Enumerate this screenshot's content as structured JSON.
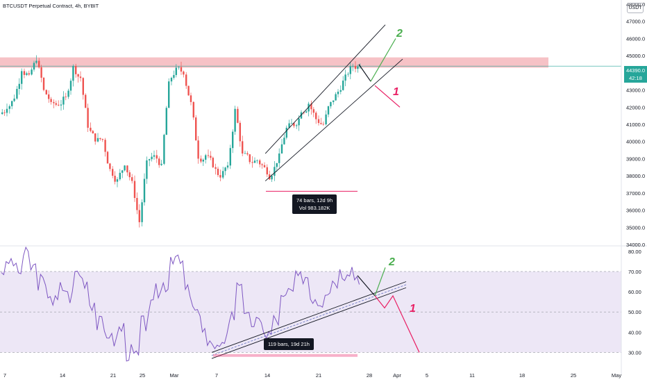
{
  "header": {
    "title": "BTCUSDT Perpetual Contract, 4h, BYBIT",
    "currency": "USDT"
  },
  "price_tag": {
    "price": "44390.0",
    "countdown": "42:18"
  },
  "measure_price": {
    "line1": "74 bars, 12d 9h",
    "line2": "Vol 983.182K"
  },
  "measure_rsi": {
    "line1": "119 bars, 19d 21h"
  },
  "annotations": {
    "up_label": "2",
    "down_label": "1"
  },
  "colors": {
    "up": "#26a69a",
    "down": "#ef5350",
    "rsi": "#7e57c2",
    "resistance": "#f5b7bc",
    "rsi_band": "#ede7f6",
    "green_arrow": "#4caf50",
    "red_arrow": "#e91e63"
  },
  "chart_data": [
    {
      "type": "candlestick",
      "title": "BTCUSDT Perpetual Contract, 4h, BYBIT",
      "y_ticks": [
        "34000.0",
        "35000.0",
        "36000.0",
        "37000.0",
        "38000.0",
        "39000.0",
        "40000.0",
        "41000.0",
        "42000.0",
        "43000.0",
        "44000.0",
        "45000.0",
        "46000.0",
        "47000.0",
        "48000.0"
      ],
      "x_ticks": [
        "7",
        "14",
        "21",
        "25",
        "Mar",
        "7",
        "14",
        "21",
        "28",
        "Apr",
        "5",
        "11",
        "18",
        "25",
        "May"
      ],
      "ylim": [
        34000,
        48000
      ],
      "resistance_zone": [
        44300,
        44900
      ],
      "last_price": 44390.0,
      "close_path": [
        {
          "date": "Feb 6",
          "close": 41900
        },
        {
          "date": "Feb 7",
          "close": 42500
        },
        {
          "date": "Feb 8",
          "close": 44100
        },
        {
          "date": "Feb 9",
          "close": 43900
        },
        {
          "date": "Feb 10",
          "close": 44700
        },
        {
          "date": "Feb 11",
          "close": 43000
        },
        {
          "date": "Feb 12",
          "close": 42300
        },
        {
          "date": "Feb 13",
          "close": 42100
        },
        {
          "date": "Feb 14",
          "close": 42600
        },
        {
          "date": "Feb 15",
          "close": 44400
        },
        {
          "date": "Feb 16",
          "close": 43700
        },
        {
          "date": "Feb 17",
          "close": 40800
        },
        {
          "date": "Feb 18",
          "close": 40000
        },
        {
          "date": "Feb 19",
          "close": 40100
        },
        {
          "date": "Feb 20",
          "close": 38400
        },
        {
          "date": "Feb 21",
          "close": 37800
        },
        {
          "date": "Feb 22",
          "close": 38600
        },
        {
          "date": "Feb 23",
          "close": 37700
        },
        {
          "date": "Feb 24",
          "close": 35300
        },
        {
          "date": "Feb 25",
          "close": 38900
        },
        {
          "date": "Feb 26",
          "close": 39200
        },
        {
          "date": "Feb 27",
          "close": 38700
        },
        {
          "date": "Feb 28",
          "close": 43500
        },
        {
          "date": "Mar 1",
          "close": 44300
        },
        {
          "date": "Mar 2",
          "close": 43900
        },
        {
          "date": "Mar 3",
          "close": 42300
        },
        {
          "date": "Mar 4",
          "close": 39000
        },
        {
          "date": "Mar 5",
          "close": 39200
        },
        {
          "date": "Mar 6",
          "close": 38500
        },
        {
          "date": "Mar 7",
          "close": 37900
        },
        {
          "date": "Mar 8",
          "close": 38600
        },
        {
          "date": "Mar 9",
          "close": 41900
        },
        {
          "date": "Mar 10",
          "close": 39300
        },
        {
          "date": "Mar 11",
          "close": 38800
        },
        {
          "date": "Mar 12",
          "close": 38900
        },
        {
          "date": "Mar 13",
          "close": 38500
        },
        {
          "date": "Mar 14",
          "close": 38000
        },
        {
          "date": "Mar 15",
          "close": 39300
        },
        {
          "date": "Mar 16",
          "close": 40800
        },
        {
          "date": "Mar 17",
          "close": 40900
        },
        {
          "date": "Mar 18",
          "close": 41700
        },
        {
          "date": "Mar 19",
          "close": 42200
        },
        {
          "date": "Mar 20",
          "close": 41300
        },
        {
          "date": "Mar 21",
          "close": 41000
        },
        {
          "date": "Mar 22",
          "close": 42300
        },
        {
          "date": "Mar 23",
          "close": 42900
        },
        {
          "date": "Mar 24",
          "close": 43900
        },
        {
          "date": "Mar 25",
          "close": 44400
        },
        {
          "date": "Mar 26",
          "close": 44390
        }
      ],
      "channel": {
        "start": {
          "date": "Mar 14",
          "price": 37700
        },
        "end": {
          "date": "Mar 28",
          "price": 46800
        },
        "lower_end": {
          "date": "Mar 28",
          "price": 44800
        }
      },
      "scenarios": [
        {
          "label": "2",
          "direction": "up",
          "target": 46000
        },
        {
          "label": "1",
          "direction": "down",
          "target": 42000
        }
      ]
    },
    {
      "type": "line",
      "series": [
        {
          "values": [
            71,
            75,
            70,
            78,
            72,
            65,
            60,
            55,
            62,
            58,
            70,
            66,
            55,
            44,
            40,
            36,
            42,
            30,
            28,
            44,
            52,
            60,
            64,
            78,
            74,
            60,
            50,
            44,
            34,
            30,
            38,
            48,
            66,
            46,
            45,
            43,
            39,
            46,
            56,
            60,
            66,
            68,
            58,
            56,
            62,
            66,
            70,
            72,
            68
          ]
        }
      ],
      "y_ticks": [
        "30.00",
        "40.00",
        "50.00",
        "60.00",
        "70.00",
        "80.00"
      ],
      "ylim": [
        25,
        82
      ],
      "band": [
        30,
        70
      ],
      "mid_line": 50
    }
  ]
}
